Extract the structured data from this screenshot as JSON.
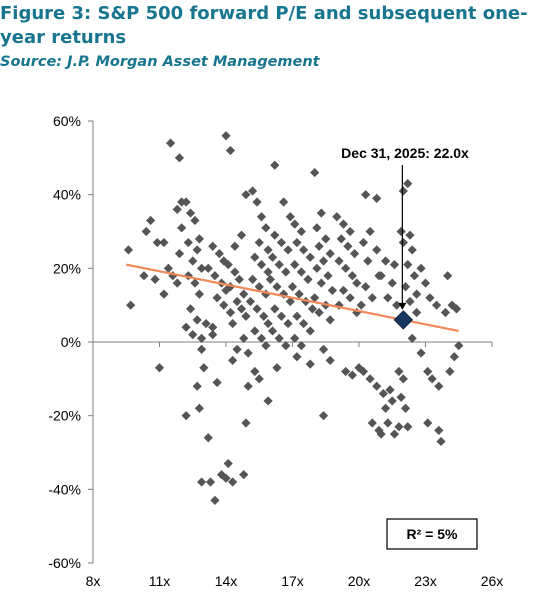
{
  "figure": {
    "title": "Figure 3: S&P 500 forward P/E and subsequent one-year returns",
    "source": "Source: J.P. Morgan Asset Management"
  },
  "chart_data": {
    "type": "scatter",
    "xlim": [
      8,
      26
    ],
    "ylim": [
      -60,
      60
    ],
    "xticks": [
      "8x",
      "11x",
      "14x",
      "17x",
      "20x",
      "23x",
      "26x"
    ],
    "yticks": [
      "60%",
      "40%",
      "20%",
      "0%",
      "-20%",
      "-40%",
      "-60%"
    ],
    "grid": false,
    "colors": {
      "points": "#555555",
      "trendline": "#f0895a",
      "highlight": "#17375e"
    },
    "trendline": {
      "x": [
        9.5,
        24.5
      ],
      "y": [
        21,
        3
      ]
    },
    "highlight": {
      "label": "Dec 31, 2025: 22.0x",
      "x": 22.0,
      "y": 6
    },
    "r_squared_label": "R² = 5%",
    "points": [
      [
        9.6,
        25
      ],
      [
        9.7,
        10
      ],
      [
        10.3,
        18
      ],
      [
        10.8,
        17
      ],
      [
        10.4,
        30
      ],
      [
        10.6,
        33
      ],
      [
        10.9,
        27
      ],
      [
        11.2,
        27
      ],
      [
        11.4,
        20
      ],
      [
        11.6,
        18
      ],
      [
        11.8,
        16
      ],
      [
        11.2,
        13
      ],
      [
        11.0,
        -7
      ],
      [
        11.9,
        24
      ],
      [
        12.0,
        31
      ],
      [
        11.8,
        36
      ],
      [
        12.0,
        38
      ],
      [
        11.5,
        54
      ],
      [
        11.9,
        50
      ],
      [
        12.2,
        38
      ],
      [
        12.4,
        35
      ],
      [
        12.6,
        33
      ],
      [
        12.3,
        27
      ],
      [
        12.7,
        25
      ],
      [
        12.8,
        28
      ],
      [
        12.5,
        22
      ],
      [
        12.9,
        20
      ],
      [
        12.3,
        18
      ],
      [
        12.6,
        16
      ],
      [
        12.8,
        13
      ],
      [
        12.4,
        9
      ],
      [
        12.7,
        6
      ],
      [
        12.2,
        4
      ],
      [
        12.5,
        2
      ],
      [
        12.9,
        1
      ],
      [
        13.1,
        5
      ],
      [
        13.4,
        2
      ],
      [
        12.9,
        -2
      ],
      [
        13.0,
        -7
      ],
      [
        12.7,
        -12
      ],
      [
        12.2,
        -20
      ],
      [
        12.8,
        -18
      ],
      [
        13.2,
        -26
      ],
      [
        13.6,
        -11
      ],
      [
        12.9,
        -38
      ],
      [
        13.3,
        -38
      ],
      [
        13.5,
        -43
      ],
      [
        13.8,
        -36
      ],
      [
        14.1,
        -33
      ],
      [
        14.0,
        -37
      ],
      [
        14.3,
        -38
      ],
      [
        13.4,
        26
      ],
      [
        13.7,
        24
      ],
      [
        13.9,
        22
      ],
      [
        13.2,
        20
      ],
      [
        13.5,
        18
      ],
      [
        13.8,
        16
      ],
      [
        14.0,
        14
      ],
      [
        13.6,
        12
      ],
      [
        13.9,
        10
      ],
      [
        14.2,
        8
      ],
      [
        13.4,
        4
      ],
      [
        14.5,
        -2
      ],
      [
        14.3,
        -5
      ],
      [
        14.1,
        21
      ],
      [
        14.4,
        19
      ],
      [
        14.6,
        17
      ],
      [
        14.2,
        15
      ],
      [
        14.8,
        13
      ],
      [
        14.5,
        11
      ],
      [
        14.7,
        9
      ],
      [
        14.9,
        7
      ],
      [
        14.3,
        5
      ],
      [
        14.8,
        1
      ],
      [
        15.0,
        -3
      ],
      [
        15.3,
        -8
      ],
      [
        15.0,
        -12
      ],
      [
        14.9,
        -22
      ],
      [
        14.8,
        -36
      ],
      [
        14.4,
        26
      ],
      [
        14.7,
        29
      ],
      [
        14.9,
        40
      ],
      [
        15.2,
        41
      ],
      [
        14.0,
        56
      ],
      [
        14.2,
        52
      ],
      [
        15.4,
        38
      ],
      [
        15.6,
        34
      ],
      [
        15.8,
        31
      ],
      [
        15.5,
        27
      ],
      [
        15.9,
        25
      ],
      [
        15.3,
        23
      ],
      [
        15.6,
        21
      ],
      [
        15.9,
        19
      ],
      [
        15.2,
        17
      ],
      [
        15.5,
        15
      ],
      [
        15.8,
        13
      ],
      [
        15.1,
        11
      ],
      [
        15.4,
        9
      ],
      [
        15.7,
        7
      ],
      [
        15.9,
        5
      ],
      [
        15.3,
        3
      ],
      [
        15.6,
        1
      ],
      [
        15.8,
        -1
      ],
      [
        15.5,
        -10
      ],
      [
        15.9,
        -16
      ],
      [
        16.2,
        29
      ],
      [
        16.5,
        27
      ],
      [
        16.8,
        25
      ],
      [
        16.1,
        23
      ],
      [
        16.4,
        21
      ],
      [
        16.7,
        19
      ],
      [
        16.0,
        17
      ],
      [
        16.3,
        15
      ],
      [
        16.6,
        13
      ],
      [
        16.9,
        11
      ],
      [
        16.2,
        9
      ],
      [
        16.5,
        7
      ],
      [
        16.8,
        5
      ],
      [
        16.1,
        3
      ],
      [
        16.4,
        1
      ],
      [
        16.7,
        -1
      ],
      [
        16.3,
        -7
      ],
      [
        16.2,
        48
      ],
      [
        16.6,
        38
      ],
      [
        16.9,
        34
      ],
      [
        17.1,
        32
      ],
      [
        17.4,
        30
      ],
      [
        17.2,
        27
      ],
      [
        17.5,
        25
      ],
      [
        17.8,
        23
      ],
      [
        17.1,
        21
      ],
      [
        17.4,
        19
      ],
      [
        17.7,
        17
      ],
      [
        17.0,
        15
      ],
      [
        17.3,
        13
      ],
      [
        17.6,
        11
      ],
      [
        17.9,
        9
      ],
      [
        17.2,
        7
      ],
      [
        17.5,
        5
      ],
      [
        17.8,
        3
      ],
      [
        17.1,
        1
      ],
      [
        17.4,
        -1
      ],
      [
        17.8,
        -6
      ],
      [
        17.2,
        -4
      ],
      [
        18.0,
        46
      ],
      [
        18.3,
        35
      ],
      [
        18.1,
        31
      ],
      [
        18.5,
        28
      ],
      [
        18.2,
        26
      ],
      [
        18.7,
        24
      ],
      [
        18.4,
        22
      ],
      [
        18.1,
        20
      ],
      [
        18.6,
        18
      ],
      [
        18.3,
        16
      ],
      [
        18.8,
        14
      ],
      [
        18.0,
        12
      ],
      [
        18.5,
        10
      ],
      [
        18.2,
        8
      ],
      [
        18.7,
        6
      ],
      [
        18.4,
        -2
      ],
      [
        18.7,
        -5
      ],
      [
        18.4,
        -20
      ],
      [
        19.0,
        34
      ],
      [
        19.3,
        32
      ],
      [
        19.6,
        30
      ],
      [
        19.2,
        28
      ],
      [
        19.5,
        26
      ],
      [
        19.8,
        24
      ],
      [
        19.1,
        22
      ],
      [
        19.4,
        20
      ],
      [
        19.7,
        18
      ],
      [
        19.9,
        16
      ],
      [
        19.3,
        14
      ],
      [
        19.6,
        12
      ],
      [
        19.1,
        10
      ],
      [
        19.9,
        8
      ],
      [
        19.4,
        -8
      ],
      [
        19.7,
        -9
      ],
      [
        20.0,
        -7
      ],
      [
        20.2,
        -8
      ],
      [
        20.3,
        40
      ],
      [
        20.8,
        39
      ],
      [
        20.5,
        30
      ],
      [
        20.2,
        27
      ],
      [
        20.8,
        25
      ],
      [
        20.4,
        22
      ],
      [
        20.9,
        18
      ],
      [
        20.3,
        15
      ],
      [
        20.6,
        12
      ],
      [
        20.1,
        10
      ],
      [
        20.5,
        -10
      ],
      [
        20.8,
        -12
      ],
      [
        20.6,
        -22
      ],
      [
        20.9,
        -24
      ],
      [
        21.1,
        -14
      ],
      [
        21.4,
        -13
      ],
      [
        21.2,
        -18
      ],
      [
        21.5,
        -16
      ],
      [
        21.3,
        -22
      ],
      [
        21.6,
        -25
      ],
      [
        21.0,
        -25
      ],
      [
        21.2,
        22
      ],
      [
        21.6,
        21
      ],
      [
        21.0,
        18
      ],
      [
        21.5,
        16
      ],
      [
        21.3,
        12
      ],
      [
        21.7,
        10
      ],
      [
        21.8,
        -8
      ],
      [
        22.0,
        -10
      ],
      [
        21.9,
        -15
      ],
      [
        22.1,
        -18
      ],
      [
        21.8,
        -23
      ],
      [
        22.2,
        -23
      ],
      [
        22.0,
        41
      ],
      [
        22.2,
        43
      ],
      [
        21.9,
        30
      ],
      [
        22.3,
        29
      ],
      [
        22.0,
        27
      ],
      [
        22.4,
        25
      ],
      [
        22.2,
        21
      ],
      [
        22.5,
        18
      ],
      [
        22.1,
        15
      ],
      [
        22.6,
        13
      ],
      [
        22.3,
        11
      ],
      [
        22.6,
        8
      ],
      [
        22.4,
        1
      ],
      [
        22.8,
        20
      ],
      [
        23.0,
        16
      ],
      [
        23.2,
        12
      ],
      [
        23.5,
        10
      ],
      [
        22.8,
        -3
      ],
      [
        23.1,
        -8
      ],
      [
        23.3,
        -10
      ],
      [
        23.6,
        -12
      ],
      [
        23.1,
        -22
      ],
      [
        23.6,
        -24
      ],
      [
        23.7,
        -27
      ],
      [
        24.0,
        18
      ],
      [
        23.9,
        8
      ],
      [
        24.2,
        10
      ],
      [
        24.4,
        9
      ],
      [
        24.1,
        -8
      ],
      [
        24.5,
        -1
      ],
      [
        24.3,
        -4
      ]
    ]
  }
}
